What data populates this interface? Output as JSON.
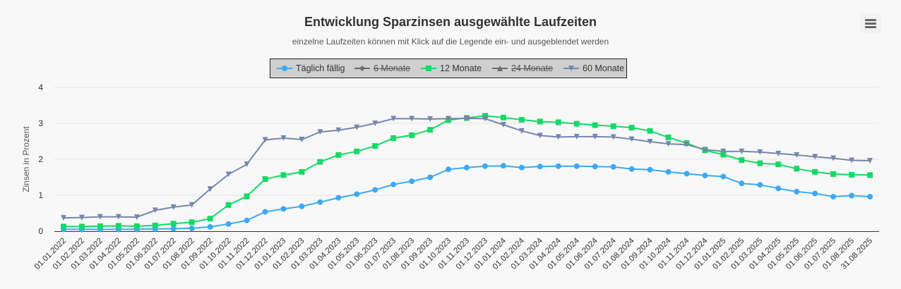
{
  "title": "Entwicklung Sparzinsen ausgewählte Laufzeiten",
  "subtitle": "einzelne Laufzeiten können mit Klick auf die Legende ein- und ausgeblendet werden",
  "menu_icon": "hamburger-menu-icon",
  "legend": [
    {
      "label": "Täglich fällig",
      "color": "#3da9f5",
      "marker": "circle",
      "hidden": false
    },
    {
      "label": "6 Monate",
      "color": "#6b6b6b",
      "marker": "diamond",
      "hidden": true
    },
    {
      "label": "12 Monate",
      "color": "#14d967",
      "marker": "square",
      "hidden": false
    },
    {
      "label": "24 Monate",
      "color": "#6b6b6b",
      "marker": "triangle",
      "hidden": true
    },
    {
      "label": "60 Monate",
      "color": "#7687ad",
      "marker": "triangle-down",
      "hidden": false
    }
  ],
  "chart_data": {
    "type": "line",
    "title": "Entwicklung Sparzinsen ausgewählte Laufzeiten",
    "subtitle": "einzelne Laufzeiten können mit Klick auf die Legende ein- und ausgeblendet werden",
    "xlabel": "",
    "ylabel": "Zinsen in Prozent",
    "ylim": [
      0,
      4
    ],
    "yticks": [
      "0",
      "1",
      "2",
      "3",
      "4"
    ],
    "grid": true,
    "legend_position": "top-center",
    "x": [
      "01.01.2022",
      "01.02.2022",
      "01.03.2022",
      "01.04.2022",
      "01.05.2022",
      "01.06.2022",
      "01.07.2022",
      "01.08.2022",
      "01.09.2022",
      "01.10.2022",
      "01.11.2022",
      "01.12.2022",
      "01.01.2023",
      "01.02.2023",
      "01.03.2023",
      "01.04.2023",
      "01.05.2023",
      "01.06.2023",
      "01.07.2023",
      "01.08.2023",
      "01.09.2023",
      "01.10.2023",
      "01.11.2023",
      "01.12.2023",
      "01.01.2024",
      "01.02.2024",
      "01.03.2024",
      "01.04.2024",
      "01.05.2024",
      "01.06.2024",
      "01.07.2024",
      "01.08.2024",
      "01.09.2024",
      "01.10.2024",
      "01.11.2024",
      "01.12.2024",
      "01.01.2025",
      "01.02.2025",
      "01.03.2025",
      "01.04.2025",
      "01.05.2025",
      "01.06.2025",
      "01.07.2025",
      "01.08.2025",
      "31.08.2025"
    ],
    "series": [
      {
        "name": "Täglich fällig",
        "values": [
          0.05,
          0.05,
          0.05,
          0.05,
          0.05,
          0.06,
          0.07,
          0.08,
          0.12,
          0.2,
          0.3,
          0.54,
          0.62,
          0.69,
          0.81,
          0.93,
          1.03,
          1.15,
          1.3,
          1.39,
          1.5,
          1.72,
          1.77,
          1.81,
          1.82,
          1.77,
          1.8,
          1.81,
          1.81,
          1.8,
          1.79,
          1.73,
          1.71,
          1.65,
          1.6,
          1.55,
          1.52,
          1.33,
          1.29,
          1.19,
          1.1,
          1.05,
          0.96,
          0.99,
          0.96
        ]
      },
      {
        "name": "12 Monate",
        "values": [
          0.13,
          0.13,
          0.14,
          0.15,
          0.14,
          0.16,
          0.21,
          0.25,
          0.35,
          0.73,
          0.97,
          1.45,
          1.56,
          1.65,
          1.93,
          2.12,
          2.22,
          2.37,
          2.59,
          2.67,
          2.82,
          3.09,
          3.15,
          3.21,
          3.16,
          3.1,
          3.05,
          3.03,
          2.99,
          2.95,
          2.92,
          2.88,
          2.79,
          2.61,
          2.45,
          2.25,
          2.13,
          1.98,
          1.89,
          1.86,
          1.74,
          1.65,
          1.59,
          1.57,
          1.56
        ]
      },
      {
        "name": "60 Monate",
        "values": [
          0.37,
          0.38,
          0.4,
          0.4,
          0.39,
          0.58,
          0.67,
          0.73,
          1.17,
          1.58,
          1.86,
          2.54,
          2.59,
          2.55,
          2.76,
          2.81,
          2.89,
          3.0,
          3.13,
          3.13,
          3.12,
          3.13,
          3.14,
          3.13,
          2.96,
          2.79,
          2.66,
          2.62,
          2.63,
          2.63,
          2.62,
          2.56,
          2.49,
          2.43,
          2.41,
          2.27,
          2.22,
          2.22,
          2.2,
          2.16,
          2.12,
          2.07,
          2.03,
          1.97,
          1.96
        ]
      }
    ]
  }
}
